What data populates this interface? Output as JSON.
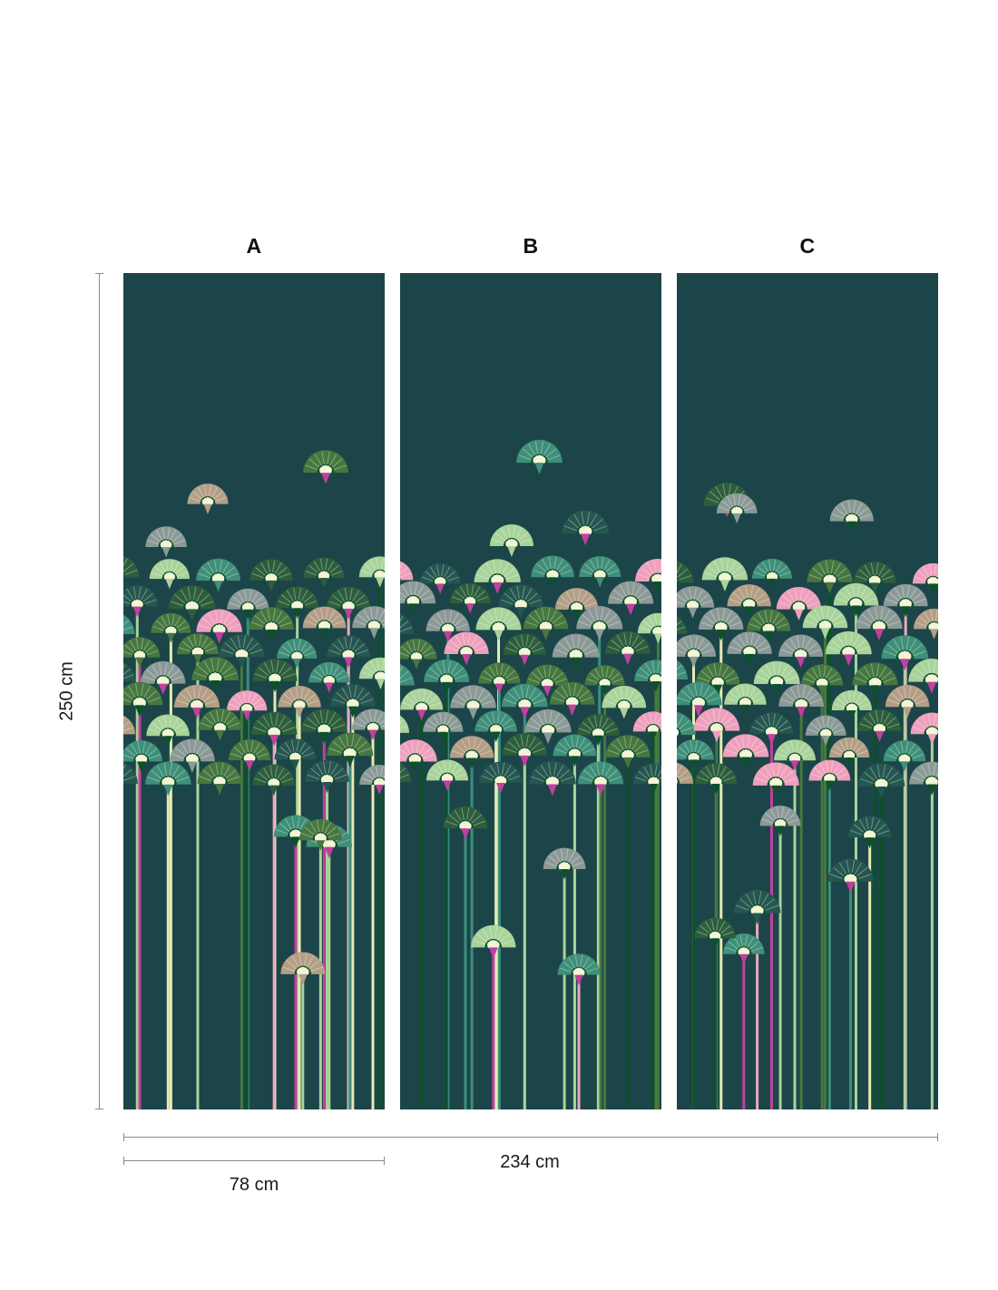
{
  "panels": {
    "a_label": "A",
    "b_label": "B",
    "c_label": "C"
  },
  "dimensions": {
    "height": "250 cm",
    "total_width": "234 cm",
    "panel_width": "78 cm"
  },
  "colors": {
    "background": "#1c4549",
    "palette": [
      "#a9d39a",
      "#eea0bd",
      "#b49f86",
      "#8c9a97",
      "#3f8f79",
      "#2d5e3c",
      "#25564f",
      "#46773f"
    ],
    "center": "#0b5129",
    "petal": "#f4f4d6",
    "stems": [
      "#e6ebb4",
      "#a9d39a",
      "#3a8f7c",
      "#c1409f",
      "#46773f",
      "#0b5129",
      "#e8aabe"
    ]
  }
}
